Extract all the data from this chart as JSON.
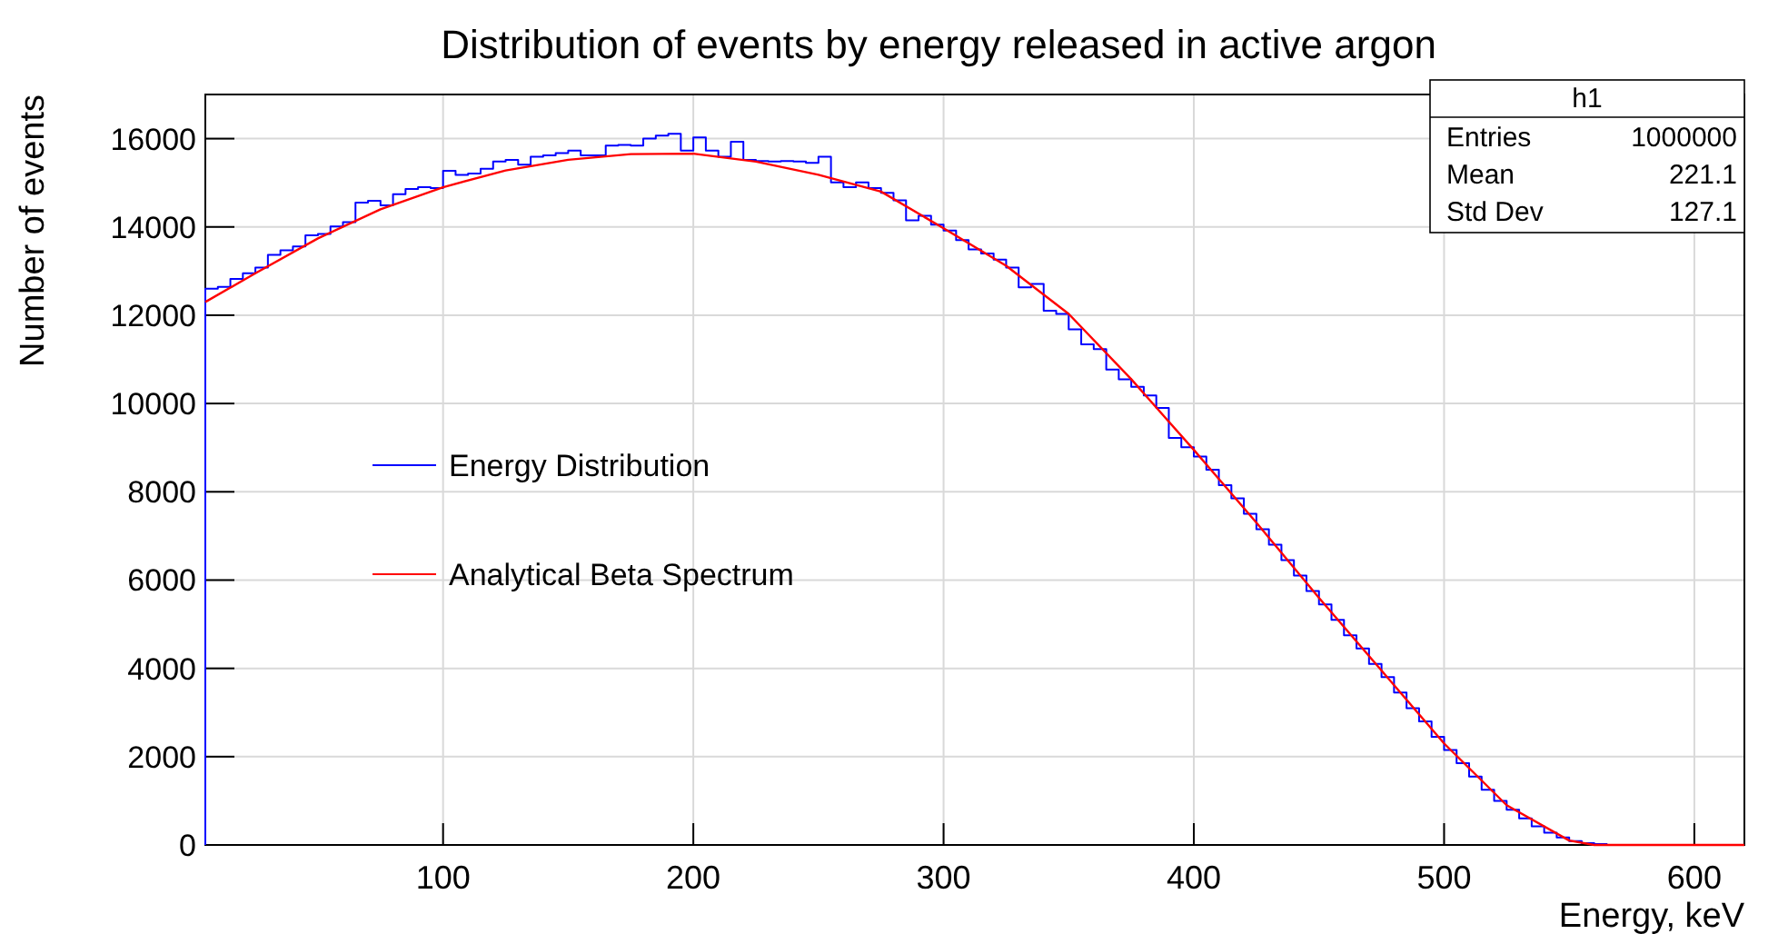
{
  "chart_data": {
    "type": "histogram",
    "title": "Distribution of events by energy released in active argon",
    "xlabel": "Energy, keV",
    "ylabel": "Number of events",
    "annotations": [
      "h1",
      "Entries",
      "1000000",
      "Mean",
      "221.1",
      "Std Dev",
      "127.1"
    ],
    "xlim": [
      5,
      620
    ],
    "xticks": [
      100,
      200,
      300,
      400,
      500,
      600
    ],
    "ylim": [
      0,
      17000
    ],
    "yticks": [
      0,
      2000,
      4000,
      6000,
      8000,
      10000,
      12000,
      14000,
      16000
    ],
    "grid": true,
    "legend": "left",
    "bins": [
      5,
      10,
      15,
      20,
      25,
      30,
      35,
      40,
      45,
      50,
      55,
      60,
      65,
      70,
      75,
      80,
      85,
      90,
      95,
      100,
      105,
      110,
      115,
      120,
      125,
      130,
      135,
      140,
      145,
      150,
      155,
      160,
      165,
      170,
      175,
      180,
      185,
      190,
      195,
      200,
      205,
      210,
      215,
      220,
      225,
      230,
      235,
      240,
      245,
      250,
      255,
      260,
      265,
      270,
      275,
      280,
      285,
      290,
      295,
      300,
      305,
      310,
      315,
      320,
      325,
      330,
      335,
      340,
      345,
      350,
      355,
      360,
      365,
      370,
      375,
      380,
      385,
      390,
      395,
      400,
      405,
      410,
      415,
      420,
      425,
      430,
      435,
      440,
      445,
      450,
      455,
      460,
      465,
      470,
      475,
      480,
      485,
      490,
      495,
      500,
      505,
      510,
      515,
      520,
      525,
      530,
      535,
      540,
      545,
      550,
      555,
      560,
      565,
      570,
      575,
      580,
      585,
      590,
      595,
      600,
      605,
      610,
      615,
      620
    ],
    "series": [
      {
        "name": "Energy Distribution",
        "color": "#0000ff",
        "values": [
          12600,
          12640,
          12820,
          12950,
          13080,
          13370,
          13470,
          13560,
          13810,
          13840,
          14010,
          14110,
          14550,
          14590,
          14490,
          14740,
          14860,
          14900,
          14880,
          15270,
          15180,
          15210,
          15320,
          15480,
          15520,
          15410,
          15590,
          15620,
          15670,
          15730,
          15620,
          15620,
          15840,
          15860,
          15840,
          16000,
          16070,
          16110,
          15730,
          16030,
          15730,
          15590,
          15930,
          15520,
          15490,
          15480,
          15490,
          15480,
          15450,
          15590,
          15010,
          14900,
          15010,
          14880,
          14770,
          14600,
          14150,
          14250,
          14050,
          13920,
          13700,
          13490,
          13400,
          13260,
          13080,
          12630,
          12710,
          12100,
          12030,
          11680,
          11340,
          11230,
          10770,
          10550,
          10380,
          10180,
          9900,
          9220,
          9010,
          8800,
          8500,
          8150,
          7850,
          7500,
          7150,
          6800,
          6450,
          6100,
          5750,
          5450,
          5100,
          4750,
          4450,
          4100,
          3800,
          3450,
          3100,
          2800,
          2450,
          2150,
          1850,
          1550,
          1250,
          1000,
          800,
          600,
          420,
          280,
          170,
          90,
          40,
          20,
          0,
          0,
          0,
          0,
          0,
          0,
          0,
          0,
          0,
          0,
          0
        ]
      },
      {
        "type": "line",
        "name": "Analytical Beta Spectrum",
        "color": "#ff0000",
        "x": [
          5,
          25,
          50,
          75,
          100,
          125,
          150,
          175,
          200,
          225,
          250,
          275,
          300,
          325,
          350,
          375,
          400,
          425,
          450,
          475,
          500,
          525,
          550,
          560,
          620
        ],
        "values": [
          12300,
          12950,
          13740,
          14400,
          14900,
          15280,
          15520,
          15650,
          15660,
          15480,
          15180,
          14800,
          13970,
          13120,
          12030,
          10550,
          8950,
          7300,
          5600,
          3950,
          2300,
          900,
          100,
          0,
          0
        ]
      }
    ]
  }
}
